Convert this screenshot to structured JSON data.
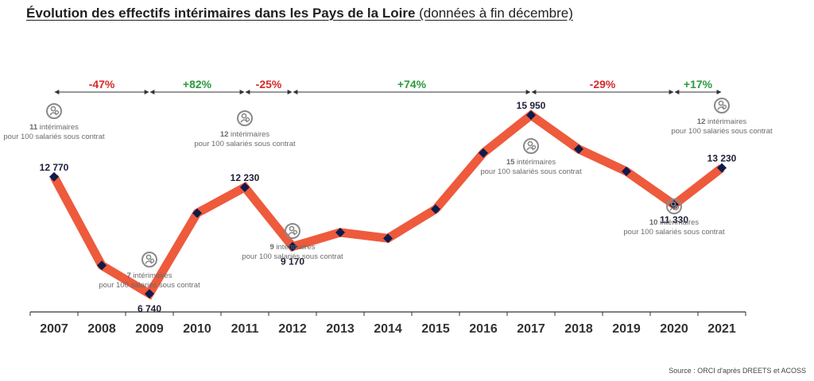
{
  "title": "Évolution des effectifs intérimaires dans les Pays de la Loire",
  "subtitle": "(données à fin décembre)",
  "source": "Source : ORCI d'après DREETS et ACOSS",
  "colors": {
    "line": "#ee5a3c",
    "marker": "#0d1b4d",
    "positive": "#2a9a3c",
    "negative": "#d42a2a",
    "annotation_text": "#6b6b6b",
    "icon": "#8a8a8a"
  },
  "chart_data": {
    "type": "line",
    "title": "Évolution des effectifs intérimaires dans les Pays de la Loire",
    "subtitle": "(données à fin décembre)",
    "categories": [
      "2007",
      "2008",
      "2009",
      "2010",
      "2011",
      "2012",
      "2013",
      "2014",
      "2015",
      "2016",
      "2017",
      "2018",
      "2019",
      "2020",
      "2021"
    ],
    "values": [
      12770,
      8200,
      6740,
      10900,
      12230,
      9170,
      9900,
      9600,
      11100,
      14000,
      15950,
      14200,
      13050,
      11330,
      13230
    ],
    "ylim": [
      4000,
      18000
    ],
    "grid": false,
    "value_labels": [
      {
        "year": "2007",
        "text": "12 770"
      },
      {
        "year": "2009",
        "text": "6 740"
      },
      {
        "year": "2011",
        "text": "12 230"
      },
      {
        "year": "2012",
        "text": "9 170"
      },
      {
        "year": "2017",
        "text": "15 950"
      },
      {
        "year": "2020",
        "text": "11 330"
      },
      {
        "year": "2021",
        "text": "13 230"
      }
    ],
    "periods": [
      {
        "from": "2007",
        "to": "2009",
        "label": "-47%",
        "sign": "negative"
      },
      {
        "from": "2009",
        "to": "2011",
        "label": "+82%",
        "sign": "positive"
      },
      {
        "from": "2011",
        "to": "2012",
        "label": "-25%",
        "sign": "negative"
      },
      {
        "from": "2012",
        "to": "2017",
        "label": "+74%",
        "sign": "positive"
      },
      {
        "from": "2017",
        "to": "2020",
        "label": "-29%",
        "sign": "negative"
      },
      {
        "from": "2020",
        "to": "2021",
        "label": "+17%",
        "sign": "positive"
      }
    ],
    "ratio_annotations": [
      {
        "year": "2007",
        "number": "11",
        "rest": " intérimaires",
        "line2": "pour 100 salariés sous contrat",
        "position": "above"
      },
      {
        "year": "2009",
        "number": "7",
        "rest": " intérimaires",
        "line2": "pour 100 salariés sous contrat",
        "position": "below"
      },
      {
        "year": "2011",
        "number": "12",
        "rest": " intérimaires",
        "line2": "pour 100 salariés sous contrat",
        "position": "above"
      },
      {
        "year": "2012",
        "number": "9",
        "rest": " intérimaires",
        "line2": "pour 100 salariés sous contrat",
        "position": "below"
      },
      {
        "year": "2017",
        "number": "15",
        "rest": " intérimaires",
        "line2": "pour 100 salariés sous contrat",
        "position": "below"
      },
      {
        "year": "2020",
        "number": "10",
        "rest": " intérimaires",
        "line2": "pour 100 salariés sous contrat",
        "position": "below"
      },
      {
        "year": "2021",
        "number": "12",
        "rest": " intérimaires",
        "line2": "pour 100 salariés sous contrat",
        "position": "above"
      }
    ]
  }
}
